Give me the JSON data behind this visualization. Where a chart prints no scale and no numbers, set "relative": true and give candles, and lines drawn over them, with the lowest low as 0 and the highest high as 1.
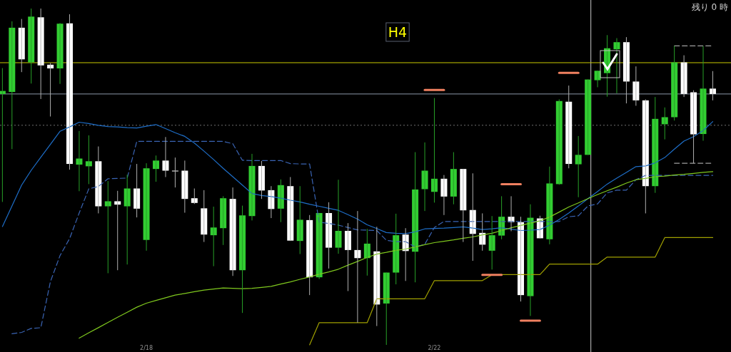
{
  "chart_data": {
    "type": "candlestick",
    "relative": true,
    "annotations": [
      "H4",
      "残り 0 時"
    ],
    "categories": [
      null,
      null,
      null,
      null,
      null,
      null,
      null,
      null,
      null,
      null,
      null,
      null,
      null,
      null,
      null,
      "2/18",
      null,
      null,
      null,
      null,
      null,
      null,
      null,
      null,
      null,
      null,
      null,
      null,
      null,
      null,
      null,
      null,
      null,
      null,
      null,
      null,
      null,
      null,
      null,
      null,
      null,
      null,
      null,
      null,
      null,
      "2/22",
      null,
      null,
      null,
      null,
      null,
      null,
      null,
      null,
      null,
      null,
      null,
      null,
      null,
      null,
      null,
      null,
      null,
      null,
      null,
      null,
      null,
      null,
      null,
      null,
      null,
      null,
      null,
      null,
      null
    ],
    "ohlc": [
      [
        0.746,
        0.823,
        0.425,
        0.755
      ],
      [
        0.752,
        0.962,
        0.582,
        0.943
      ],
      [
        0.943,
        0.969,
        0.811,
        0.849
      ],
      [
        0.84,
        1.0,
        0.777,
        0.976
      ],
      [
        0.974,
        1.0,
        0.731,
        0.831
      ],
      [
        0.833,
        0.838,
        0.679,
        0.822
      ],
      [
        0.822,
        0.957,
        0.776,
        0.955
      ],
      [
        0.956,
        0.983,
        0.521,
        0.538
      ],
      [
        0.536,
        0.636,
        0.457,
        0.554
      ],
      [
        0.531,
        0.623,
        0.478,
        0.546
      ],
      [
        0.546,
        0.59,
        0.391,
        0.412
      ],
      [
        0.412,
        0.487,
        0.213,
        0.427
      ],
      [
        0.427,
        0.458,
        0.222,
        0.417
      ],
      [
        0.412,
        0.506,
        0.239,
        0.465
      ],
      [
        0.465,
        0.538,
        0.379,
        0.405
      ],
      [
        0.312,
        0.54,
        0.28,
        0.525
      ],
      [
        0.523,
        0.563,
        0.485,
        0.548
      ],
      [
        0.548,
        0.618,
        0.499,
        0.518
      ],
      [
        0.518,
        0.557,
        0.468,
        0.516
      ],
      [
        0.518,
        0.548,
        0.393,
        0.434
      ],
      [
        0.436,
        0.465,
        0.419,
        0.422
      ],
      [
        0.406,
        0.46,
        0.306,
        0.328
      ],
      [
        0.326,
        0.411,
        0.234,
        0.349
      ],
      [
        0.347,
        0.442,
        0.297,
        0.436
      ],
      [
        0.434,
        0.468,
        0.205,
        0.222
      ],
      [
        0.222,
        0.414,
        0.095,
        0.385
      ],
      [
        0.383,
        0.568,
        0.37,
        0.532
      ],
      [
        0.532,
        0.547,
        0.434,
        0.459
      ],
      [
        0.46,
        0.472,
        0.377,
        0.404
      ],
      [
        0.405,
        0.492,
        0.365,
        0.475
      ],
      [
        0.472,
        0.499,
        0.309,
        0.31
      ],
      [
        0.309,
        0.472,
        0.27,
        0.372
      ],
      [
        0.371,
        0.386,
        0.148,
        0.201
      ],
      [
        0.201,
        0.392,
        0.196,
        0.392
      ],
      [
        0.392,
        0.424,
        0.227,
        0.289
      ],
      [
        0.289,
        0.491,
        0.271,
        0.339
      ],
      [
        0.339,
        0.362,
        0.16,
        0.282
      ],
      [
        0.282,
        0.398,
        0.066,
        0.258
      ],
      [
        0.258,
        0.345,
        0.206,
        0.301
      ],
      [
        0.278,
        0.351,
        0.056,
        0.12
      ],
      [
        0.123,
        0.215,
        0.0,
        0.215
      ],
      [
        0.215,
        0.39,
        0.18,
        0.326
      ],
      [
        0.328,
        0.347,
        0.19,
        0.279
      ],
      [
        0.277,
        0.573,
        0.186,
        0.462
      ],
      [
        0.463,
        0.602,
        0.398,
        0.518
      ],
      [
        0.455,
        0.734,
        0.423,
        0.494
      ],
      [
        0.494,
        0.505,
        0.386,
        0.441
      ],
      [
        0.441,
        0.573,
        0.418,
        0.523
      ],
      [
        0.523,
        0.523,
        0.306,
        0.4
      ],
      [
        0.401,
        0.51,
        0.25,
        0.33
      ],
      [
        0.333,
        0.391,
        0.28,
        0.298
      ],
      [
        0.28,
        0.383,
        0.224,
        0.326
      ],
      [
        0.325,
        0.442,
        0.314,
        0.381
      ],
      [
        0.381,
        0.442,
        0.338,
        0.365
      ],
      [
        0.365,
        0.381,
        0.129,
        0.148
      ],
      [
        0.145,
        0.418,
        0.086,
        0.378
      ],
      [
        0.376,
        0.384,
        0.317,
        0.317
      ],
      [
        0.314,
        0.53,
        0.299,
        0.48
      ],
      [
        0.478,
        0.73,
        0.476,
        0.725
      ],
      [
        0.723,
        0.771,
        0.525,
        0.538
      ],
      [
        0.537,
        0.621,
        0.439,
        0.565
      ],
      [
        0.565,
        0.789,
        0.565,
        0.789
      ],
      [
        0.787,
        0.815,
        0.766,
        0.815
      ],
      [
        0.808,
        0.921,
        0.738,
        0.882
      ],
      [
        0.879,
        0.912,
        0.748,
        0.9
      ],
      [
        0.9,
        0.915,
        0.718,
        0.783
      ],
      [
        0.783,
        0.828,
        0.711,
        0.727
      ],
      [
        0.727,
        0.73,
        0.391,
        0.472
      ],
      [
        0.472,
        0.737,
        0.452,
        0.672
      ],
      [
        0.656,
        0.706,
        0.611,
        0.677
      ],
      [
        0.677,
        0.889,
        0.667,
        0.84
      ],
      [
        0.84,
        0.861,
        0.737,
        0.746
      ],
      [
        0.751,
        0.757,
        0.54,
        0.626
      ],
      [
        0.627,
        0.888,
        0.607,
        0.762
      ],
      [
        0.762,
        0.814,
        0.727,
        0.746
      ]
    ],
    "colors": [
      "#32cd32",
      "#32cd32",
      "#ffffff",
      "#32cd32",
      "#ffffff",
      "#ffffff",
      "#32cd32",
      "#ffffff",
      "#32cd32",
      "#32cd32",
      "#ffffff",
      "#32cd32",
      "#ffffff",
      "#32cd32",
      "#ffffff",
      "#32cd32",
      "#32cd32",
      "#ffffff",
      "#ffffff",
      "#ffffff",
      "#ffffff",
      "#ffffff",
      "#32cd32",
      "#32cd32",
      "#ffffff",
      "#32cd32",
      "#32cd32",
      "#ffffff",
      "#ffffff",
      "#32cd32",
      "#ffffff",
      "#32cd32",
      "#ffffff",
      "#32cd32",
      "#ffffff",
      "#32cd32",
      "#ffffff",
      "#ffffff",
      "#32cd32",
      "#ffffff",
      "#32cd32",
      "#32cd32",
      "#ffffff",
      "#32cd32",
      "#32cd32",
      "#32cd32",
      "#ffffff",
      "#32cd32",
      "#ffffff",
      "#ffffff",
      "#ffffff",
      "#32cd32",
      "#32cd32",
      "#ffffff",
      "#ffffff",
      "#32cd32",
      "#ffffff",
      "#32cd32",
      "#32cd32",
      "#ffffff",
      "#32cd32",
      "#32cd32",
      "#32cd32",
      "#32cd32",
      "#32cd32",
      "#ffffff",
      "#ffffff",
      "#ffffff",
      "#32cd32",
      "#32cd32",
      "#32cd32",
      "#ffffff",
      "#ffffff",
      "#32cd32",
      "#ffffff"
    ],
    "series": [
      {
        "type": "line",
        "color": "#1e6ec8",
        "values": [
          0.352,
          0.413,
          0.475,
          0.519,
          0.558,
          0.596,
          0.635,
          0.648,
          0.662,
          0.658,
          0.653,
          0.649,
          0.648,
          0.646,
          0.645,
          0.65,
          0.655,
          0.643,
          0.631,
          0.62,
          0.6,
          0.576,
          0.551,
          0.525,
          0.5,
          0.475,
          0.45,
          0.444,
          0.441,
          0.436,
          0.43,
          0.425,
          0.418,
          0.412,
          0.406,
          0.4,
          0.387,
          0.374,
          0.357,
          0.346,
          0.334,
          0.332,
          0.331,
          0.336,
          0.345,
          0.346,
          0.347,
          0.349,
          0.351,
          0.347,
          0.343,
          0.345,
          0.348,
          0.344,
          0.34,
          0.341,
          0.343,
          0.356,
          0.373,
          0.392,
          0.413,
          0.435,
          0.456,
          0.478,
          0.496,
          0.513,
          0.53,
          0.532,
          0.541,
          0.557,
          0.582,
          0.606,
          0.619,
          0.637,
          0.664
        ]
      },
      {
        "type": "line",
        "color": "#3a64b4",
        "line_style": "dashed",
        "values": [
          null,
          0.033,
          0.037,
          0.049,
          0.051,
          0.188,
          0.265,
          0.316,
          0.392,
          0.464,
          0.471,
          0.494,
          0.495,
          0.496,
          0.605,
          0.605,
          0.605,
          0.605,
          0.605,
          0.605,
          0.605,
          0.605,
          0.605,
          0.605,
          0.598,
          0.549,
          0.548,
          0.548,
          0.548,
          0.548,
          0.539,
          0.538,
          0.538,
          0.365,
          0.361,
          0.356,
          0.349,
          0.342,
          0.341,
          0.34,
          0.311,
          0.307,
          0.307,
          0.291,
          0.299,
          0.349,
          0.367,
          0.367,
          0.367,
          0.367,
          0.367,
          0.367,
          0.367,
          0.367,
          0.367,
          0.367,
          0.367,
          0.367,
          0.367,
          0.381,
          0.384,
          0.413,
          0.419,
          0.452,
          0.46,
          0.46,
          0.491,
          0.504,
          0.504,
          0.504,
          0.504,
          0.504,
          0.504,
          0.504,
          0.504
        ]
      },
      {
        "type": "line",
        "color": "#7fc81e",
        "values": [
          null,
          null,
          null,
          null,
          null,
          null,
          null,
          null,
          0.02,
          0.036,
          0.051,
          0.067,
          0.082,
          0.097,
          0.112,
          0.124,
          0.132,
          0.14,
          0.148,
          0.153,
          0.158,
          0.163,
          0.166,
          0.169,
          0.168,
          0.167,
          0.168,
          0.171,
          0.174,
          0.181,
          0.187,
          0.195,
          0.202,
          0.21,
          0.217,
          0.225,
          0.237,
          0.248,
          0.26,
          0.27,
          0.275,
          0.281,
          0.285,
          0.291,
          0.298,
          0.304,
          0.308,
          0.312,
          0.317,
          0.321,
          0.327,
          0.332,
          0.34,
          0.348,
          0.355,
          0.362,
          0.369,
          0.38,
          0.395,
          0.41,
          0.422,
          0.435,
          0.447,
          0.458,
          0.469,
          0.481,
          0.491,
          0.495,
          0.5,
          0.502,
          0.505,
          0.507,
          0.51,
          0.513,
          0.515
        ]
      },
      {
        "type": "line",
        "color": "#a0a000",
        "values": [
          null,
          null,
          null,
          null,
          null,
          null,
          null,
          null,
          null,
          null,
          null,
          null,
          null,
          null,
          null,
          null,
          null,
          null,
          null,
          null,
          null,
          null,
          null,
          null,
          null,
          null,
          null,
          null,
          null,
          null,
          null,
          null,
          0.0,
          0.066,
          0.066,
          0.066,
          0.066,
          0.066,
          0.066,
          0.137,
          0.137,
          0.137,
          0.137,
          0.137,
          0.137,
          0.191,
          0.191,
          0.191,
          0.191,
          0.191,
          0.191,
          0.208,
          0.209,
          0.209,
          0.209,
          0.209,
          0.209,
          0.24,
          0.24,
          0.24,
          0.24,
          0.24,
          0.24,
          0.261,
          0.261,
          0.261,
          0.261,
          0.261,
          0.261,
          0.319,
          0.319,
          0.319,
          0.319,
          0.319,
          0.319
        ]
      },
      {
        "type": "line",
        "color": "#f08060",
        "values": [
          null,
          null,
          null,
          null,
          null,
          null,
          null,
          null,
          null,
          null,
          null,
          null,
          null,
          null,
          null,
          null,
          null,
          null,
          null,
          null,
          null,
          null,
          null,
          null,
          null,
          null,
          null,
          null,
          null,
          null,
          null,
          null,
          null,
          null,
          null,
          null,
          null,
          null,
          null,
          null,
          null,
          null,
          null,
          null,
          0.758,
          0.758,
          0.758,
          null,
          null,
          null,
          null,
          null,
          null,
          null,
          null,
          null,
          null,
          null,
          null,
          null,
          null,
          null,
          null,
          null,
          null,
          null,
          null,
          null,
          null,
          null,
          null,
          null,
          null,
          null,
          null
        ]
      },
      {
        "type": "line",
        "color": "#f08060",
        "values": [
          null,
          null,
          null,
          null,
          null,
          null,
          null,
          null,
          null,
          null,
          null,
          null,
          null,
          null,
          null,
          null,
          null,
          null,
          null,
          null,
          null,
          null,
          null,
          null,
          null,
          null,
          null,
          null,
          null,
          null,
          null,
          null,
          null,
          null,
          null,
          null,
          null,
          null,
          null,
          null,
          null,
          null,
          null,
          null,
          null,
          null,
          null,
          null,
          null,
          null,
          null,
          null,
          null,
          null,
          null,
          null,
          null,
          null,
          0.809,
          0.809,
          0.809,
          null,
          null,
          null,
          null,
          null,
          null,
          null,
          null,
          null,
          null,
          null,
          null,
          null,
          null
        ]
      },
      {
        "type": "line",
        "color": "#f08060",
        "values": [
          null,
          null,
          null,
          null,
          null,
          null,
          null,
          null,
          null,
          null,
          null,
          null,
          null,
          null,
          null,
          null,
          null,
          null,
          null,
          null,
          null,
          null,
          null,
          null,
          null,
          null,
          null,
          null,
          null,
          null,
          null,
          null,
          null,
          null,
          null,
          null,
          null,
          null,
          null,
          null,
          null,
          null,
          null,
          null,
          null,
          null,
          null,
          null,
          null,
          null,
          null,
          null,
          0.478,
          0.478,
          0.478,
          null,
          null,
          null,
          null,
          null,
          null,
          null,
          null,
          null,
          null,
          null,
          null,
          null,
          null,
          null,
          null,
          null,
          null,
          null,
          null
        ]
      },
      {
        "type": "line",
        "color": "#f08060",
        "values": [
          null,
          null,
          null,
          null,
          null,
          null,
          null,
          null,
          null,
          null,
          null,
          null,
          null,
          null,
          null,
          null,
          null,
          null,
          null,
          null,
          null,
          null,
          null,
          null,
          null,
          null,
          null,
          null,
          null,
          null,
          null,
          null,
          null,
          null,
          null,
          null,
          null,
          null,
          null,
          null,
          null,
          null,
          null,
          null,
          null,
          null,
          null,
          null,
          null,
          null,
          0.208,
          0.208,
          0.208,
          null,
          null,
          null,
          null,
          null,
          null,
          null,
          null,
          null,
          null,
          null,
          null,
          null,
          null,
          null,
          null,
          null,
          null,
          null,
          null,
          null,
          null
        ]
      },
      {
        "type": "line",
        "color": "#f08060",
        "values": [
          null,
          null,
          null,
          null,
          null,
          null,
          null,
          null,
          null,
          null,
          null,
          null,
          null,
          null,
          null,
          null,
          null,
          null,
          null,
          null,
          null,
          null,
          null,
          null,
          null,
          null,
          null,
          null,
          null,
          null,
          null,
          null,
          null,
          null,
          null,
          null,
          null,
          null,
          null,
          null,
          null,
          null,
          null,
          null,
          null,
          null,
          null,
          null,
          null,
          null,
          null,
          null,
          null,
          null,
          0.072,
          0.072,
          0.072,
          null,
          null,
          null,
          null,
          null,
          null,
          null,
          null,
          null,
          null,
          null,
          null,
          null,
          null,
          null,
          null,
          null,
          null
        ]
      },
      {
        "type": "line",
        "color": "#a0a0a0",
        "line_style": "dashed",
        "values": [
          null,
          null,
          null,
          null,
          null,
          null,
          null,
          null,
          null,
          null,
          null,
          null,
          null,
          null,
          null,
          null,
          null,
          null,
          null,
          null,
          null,
          null,
          null,
          null,
          null,
          null,
          null,
          null,
          null,
          null,
          null,
          null,
          null,
          null,
          null,
          null,
          null,
          null,
          null,
          null,
          null,
          null,
          null,
          null,
          null,
          null,
          null,
          null,
          null,
          null,
          null,
          null,
          null,
          null,
          null,
          null,
          null,
          null,
          null,
          null,
          null,
          null,
          null,
          null,
          null,
          null,
          null,
          null,
          null,
          null,
          0.889,
          0.889,
          0.889,
          0.889,
          0.889
        ]
      },
      {
        "type": "line",
        "color": "#a0a0a0",
        "line_style": "dashed",
        "values": [
          null,
          null,
          null,
          null,
          null,
          null,
          null,
          null,
          null,
          null,
          null,
          null,
          null,
          null,
          null,
          null,
          null,
          null,
          null,
          null,
          null,
          null,
          null,
          null,
          null,
          null,
          null,
          null,
          null,
          null,
          null,
          null,
          null,
          null,
          null,
          null,
          null,
          null,
          null,
          null,
          null,
          null,
          null,
          null,
          null,
          null,
          null,
          null,
          null,
          null,
          null,
          null,
          null,
          null,
          null,
          null,
          null,
          null,
          null,
          null,
          null,
          null,
          null,
          null,
          null,
          null,
          null,
          null,
          null,
          null,
          0.54,
          0.54,
          0.54,
          0.54,
          0.54
        ]
      }
    ],
    "ref_lines": [
      {
        "axis": "y",
        "value": 0.839,
        "color": "#c8c800"
      },
      {
        "axis": "y",
        "value": 0.746,
        "color": "#8c98a8"
      },
      {
        "axis": "y",
        "value": 0.653,
        "color": "#707070",
        "line_style": "dotted"
      }
    ]
  }
}
